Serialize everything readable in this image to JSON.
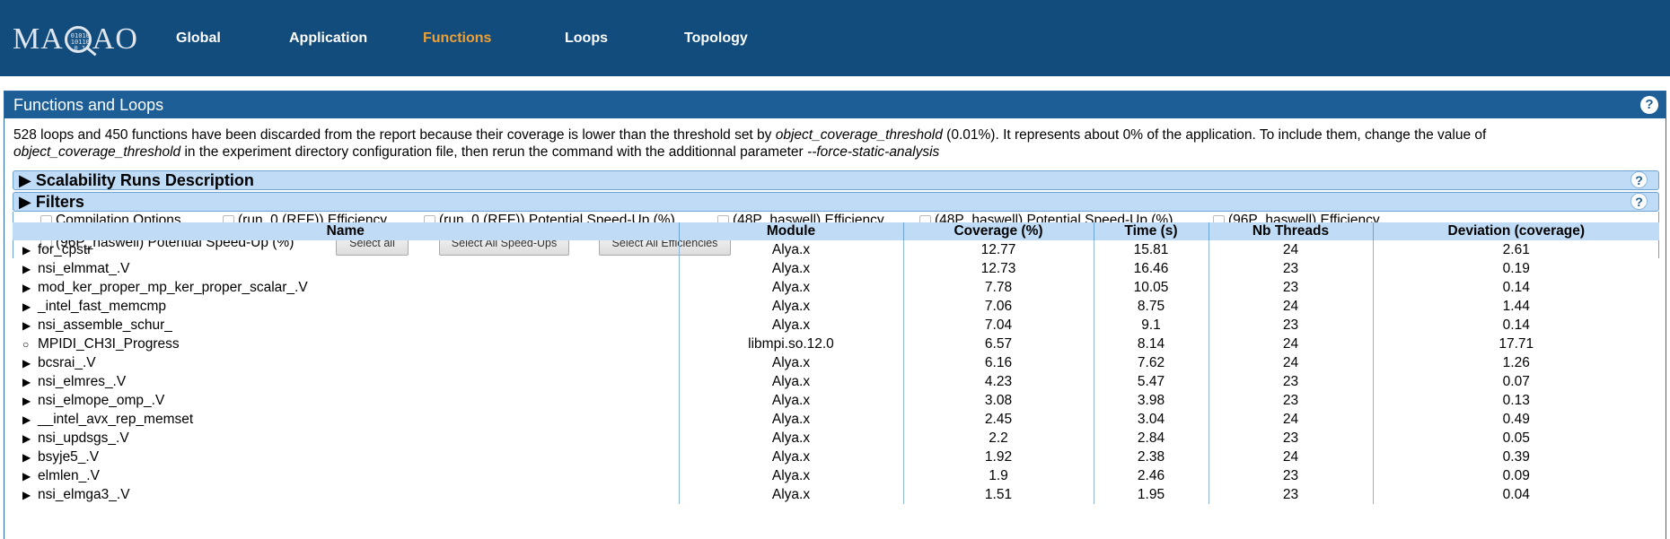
{
  "nav": {
    "logo": "MAQAO",
    "logo_bits": "01010\n1 0110\n0 1",
    "items": [
      "Global",
      "Application",
      "Functions",
      "Loops",
      "Topology"
    ],
    "active": "Functions",
    "active_color": "#f0a030"
  },
  "panel": {
    "title": "Functions and Loops",
    "help": "?",
    "desc_1": "528 loops and 450 functions have been discarded from the report because their coverage is lower than the threshold set by ",
    "desc_em1": "object_coverage_threshold",
    "desc_2": " (0.01%). It represents about 0% of the application. To include them, change the value of ",
    "desc_em2": "object_coverage_threshold",
    "desc_3": " in the experiment directory configuration file, then rerun the command with the additionnal parameter ",
    "desc_em3": "--force-static-analysis"
  },
  "sections": {
    "scalability": "▶ Scalability Runs Description",
    "filters": "▶ Filters"
  },
  "filters": {
    "options": [
      "Compilation Options",
      "(run_0 (REF)) Efficiency",
      "(run_0 (REF)) Potential Speed-Up (%)",
      "(48P_haswell) Efficiency",
      "(48P_haswell) Potential Speed-Up (%)",
      "(96P_haswell) Efficiency",
      "(96P_haswell) Potential Speed-Up (%)"
    ],
    "select_all": "Select all",
    "select_all_speedups": "Select All Speed-Ups",
    "select_all_efficiencies": "Select All Efficiencies"
  },
  "table": {
    "columns": [
      "Name",
      "Module",
      "Coverage (%)",
      "Time (s)",
      "Nb Threads",
      "Deviation (coverage)"
    ],
    "rows": [
      {
        "marker": "▶",
        "name": "for_cpstr",
        "module": "Alya.x",
        "coverage": "12.77",
        "time": "15.81",
        "threads": "24",
        "deviation": "2.61"
      },
      {
        "marker": "▶",
        "name": "nsi_elmmat_.V",
        "module": "Alya.x",
        "coverage": "12.73",
        "time": "16.46",
        "threads": "23",
        "deviation": "0.19"
      },
      {
        "marker": "▶",
        "name": "mod_ker_proper_mp_ker_proper_scalar_.V",
        "module": "Alya.x",
        "coverage": "7.78",
        "time": "10.05",
        "threads": "23",
        "deviation": "0.14"
      },
      {
        "marker": "▶",
        "name": "_intel_fast_memcmp",
        "module": "Alya.x",
        "coverage": "7.06",
        "time": "8.75",
        "threads": "24",
        "deviation": "1.44"
      },
      {
        "marker": "▶",
        "name": "nsi_assemble_schur_",
        "module": "Alya.x",
        "coverage": "7.04",
        "time": "9.1",
        "threads": "23",
        "deviation": "0.14"
      },
      {
        "marker": "○",
        "name": "MPIDI_CH3I_Progress",
        "module": "libmpi.so.12.0",
        "coverage": "6.57",
        "time": "8.14",
        "threads": "24",
        "deviation": "17.71"
      },
      {
        "marker": "▶",
        "name": "bcsrai_.V",
        "module": "Alya.x",
        "coverage": "6.16",
        "time": "7.62",
        "threads": "24",
        "deviation": "1.26"
      },
      {
        "marker": "▶",
        "name": "nsi_elmres_.V",
        "module": "Alya.x",
        "coverage": "4.23",
        "time": "5.47",
        "threads": "23",
        "deviation": "0.07"
      },
      {
        "marker": "▶",
        "name": "nsi_elmope_omp_.V",
        "module": "Alya.x",
        "coverage": "3.08",
        "time": "3.98",
        "threads": "23",
        "deviation": "0.13"
      },
      {
        "marker": "▶",
        "name": "__intel_avx_rep_memset",
        "module": "Alya.x",
        "coverage": "2.45",
        "time": "3.04",
        "threads": "24",
        "deviation": "0.49"
      },
      {
        "marker": "▶",
        "name": "nsi_updsgs_.V",
        "module": "Alya.x",
        "coverage": "2.2",
        "time": "2.84",
        "threads": "23",
        "deviation": "0.05"
      },
      {
        "marker": "▶",
        "name": "bsyje5_.V",
        "module": "Alya.x",
        "coverage": "1.92",
        "time": "2.38",
        "threads": "24",
        "deviation": "0.39"
      },
      {
        "marker": "▶",
        "name": "elmlen_.V",
        "module": "Alya.x",
        "coverage": "1.9",
        "time": "2.46",
        "threads": "23",
        "deviation": "0.09"
      },
      {
        "marker": "▶",
        "name": "nsi_elmga3_.V",
        "module": "Alya.x",
        "coverage": "1.51",
        "time": "1.95",
        "threads": "23",
        "deviation": "0.04"
      }
    ]
  }
}
